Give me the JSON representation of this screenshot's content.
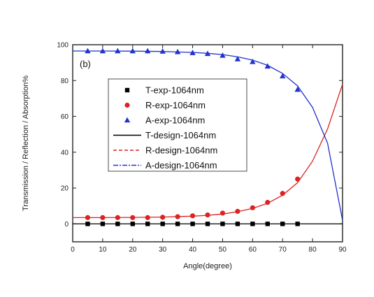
{
  "chart_data": {
    "type": "scatter",
    "panel_label": "(b)",
    "xlabel": "Angle(degree)",
    "ylabel": "Transmission / Reflection / Absorption%",
    "xlim": [
      0,
      90
    ],
    "ylim": [
      -10,
      100
    ],
    "xticks": [
      0,
      10,
      20,
      30,
      40,
      50,
      60,
      70,
      80,
      90
    ],
    "yticks": [
      0,
      20,
      40,
      60,
      80,
      100
    ],
    "grid": false,
    "legend_position": "center-left",
    "series": [
      {
        "name": "T-exp-1064nm",
        "kind": "points",
        "marker": "square",
        "color": "#000000",
        "x": [
          5,
          10,
          15,
          20,
          25,
          30,
          35,
          40,
          45,
          50,
          55,
          60,
          65,
          70,
          75
        ],
        "y": [
          0,
          0,
          0,
          0,
          0,
          0,
          0,
          0,
          0,
          0,
          0,
          0,
          0,
          0,
          0
        ]
      },
      {
        "name": "R-exp-1064nm",
        "kind": "points",
        "marker": "circle",
        "color": "#dd2222",
        "x": [
          5,
          10,
          15,
          20,
          25,
          30,
          35,
          40,
          45,
          50,
          55,
          60,
          65,
          70,
          75
        ],
        "y": [
          3.5,
          3.5,
          3.5,
          3.5,
          3.5,
          3.7,
          4,
          4.5,
          5,
          6,
          7,
          9,
          12,
          17,
          25
        ]
      },
      {
        "name": "A-exp-1064nm",
        "kind": "points",
        "marker": "triangle",
        "color": "#2233cc",
        "x": [
          5,
          10,
          15,
          20,
          25,
          30,
          35,
          40,
          45,
          50,
          55,
          60,
          65,
          70,
          75
        ],
        "y": [
          96.5,
          96.5,
          96.5,
          96.5,
          96.5,
          96.3,
          96,
          95.5,
          95,
          94,
          92,
          90.5,
          88,
          82.5,
          75
        ]
      },
      {
        "name": "T-design-1064nm",
        "kind": "line",
        "color": "#000000",
        "x": [
          0,
          10,
          20,
          30,
          40,
          50,
          60,
          70,
          80,
          90
        ],
        "y": [
          0,
          0,
          0,
          0,
          0,
          0,
          0,
          0,
          0,
          0
        ]
      },
      {
        "name": "R-design-1064nm",
        "kind": "line",
        "color": "#dd2222",
        "x": [
          0,
          10,
          20,
          30,
          40,
          45,
          50,
          55,
          60,
          65,
          70,
          75,
          80,
          85,
          90
        ],
        "y": [
          3.5,
          3.5,
          3.6,
          3.8,
          4.3,
          4.8,
          5.5,
          6.8,
          8.6,
          11.5,
          16,
          23,
          35,
          53,
          78
        ]
      },
      {
        "name": "A-design-1064nm",
        "kind": "line",
        "color": "#2233cc",
        "x": [
          0,
          10,
          20,
          30,
          40,
          45,
          50,
          55,
          60,
          65,
          70,
          75,
          80,
          85,
          90
        ],
        "y": [
          96.5,
          96.5,
          96.4,
          96.2,
          95.7,
          95.2,
          94.5,
          93.2,
          91.4,
          88.5,
          84,
          77,
          65,
          45,
          2
        ]
      }
    ]
  }
}
